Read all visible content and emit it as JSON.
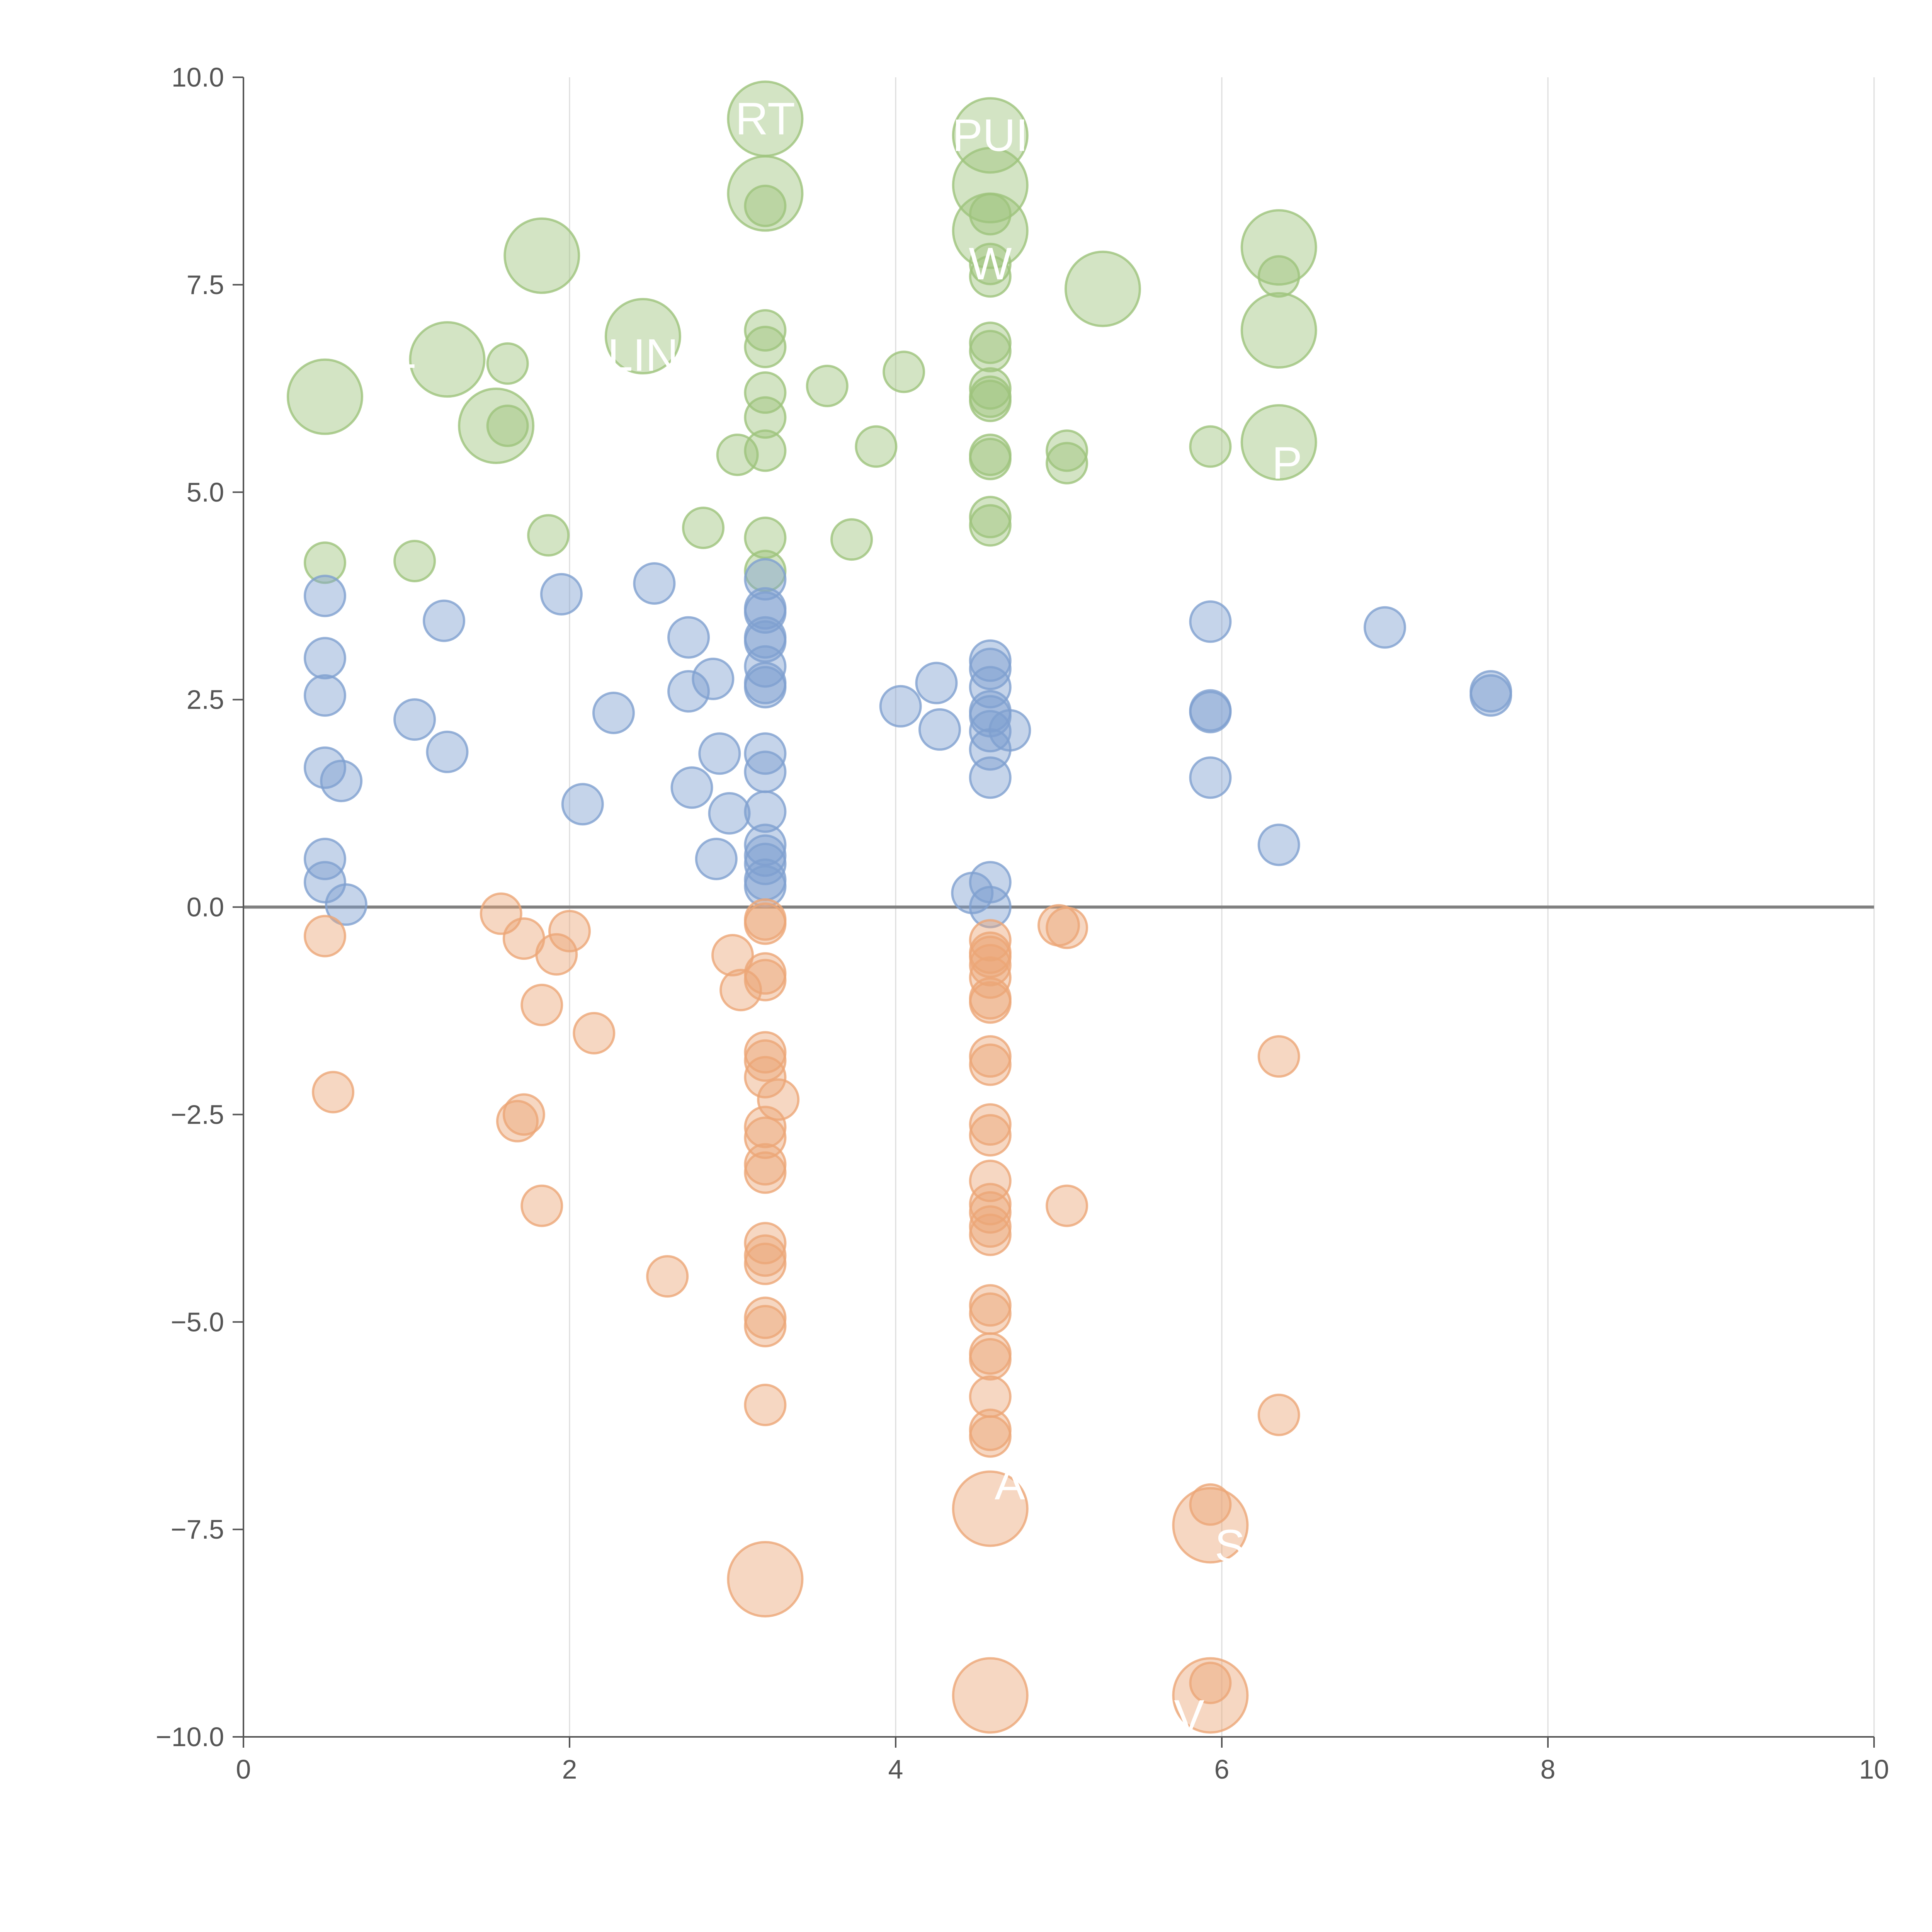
{
  "chart_data": {
    "type": "scatter",
    "title": "",
    "xlabel": "",
    "ylabel": "",
    "xlim": [
      0,
      10
    ],
    "ylim": [
      -10,
      10
    ],
    "x_ticks": [
      0,
      2,
      4,
      6,
      8,
      10
    ],
    "y_ticks": [
      -10,
      -7.5,
      -5,
      -2.5,
      0,
      2.5,
      5,
      7.5,
      10
    ],
    "x_tick_labels": [
      "0",
      "2",
      "4",
      "6",
      "8",
      "10"
    ],
    "y_tick_labels": [
      "−10.0",
      "−7.5",
      "−5.0",
      "−2.5",
      "0.0",
      "2.5",
      "5.0",
      "7.5",
      "10.0"
    ],
    "vertical_grid": true,
    "zero_line": true,
    "colors": {
      "top": "#9ec37c",
      "middle": "#7fa0d0",
      "bottom": "#eca677",
      "grid": "#dddddd",
      "axis": "#555555",
      "zero": "#808080",
      "label": "#ffffff"
    },
    "series": [
      {
        "name": "top",
        "color": "#9ec37c",
        "points": [
          [
            3.2,
            9.5,
            2
          ],
          [
            4.58,
            9.3,
            2
          ],
          [
            3.2,
            8.6,
            2
          ],
          [
            4.58,
            8.7,
            2
          ],
          [
            4.58,
            8.15,
            2
          ],
          [
            1.83,
            7.85,
            2
          ],
          [
            6.35,
            7.95,
            2
          ],
          [
            5.27,
            7.45,
            2
          ],
          [
            2.45,
            6.88,
            2
          ],
          [
            1.25,
            6.6,
            2
          ],
          [
            6.35,
            6.95,
            2
          ],
          [
            0.5,
            6.15,
            2
          ],
          [
            1.55,
            5.8,
            2
          ],
          [
            6.35,
            5.6,
            2
          ],
          [
            3.2,
            8.45,
            1
          ],
          [
            4.58,
            8.35,
            1
          ],
          [
            4.58,
            7.75,
            1
          ],
          [
            4.58,
            7.6,
            1
          ],
          [
            6.35,
            7.6,
            1
          ],
          [
            3.2,
            6.95,
            1
          ],
          [
            3.2,
            6.75,
            1
          ],
          [
            4.58,
            6.8,
            1
          ],
          [
            4.58,
            6.7,
            1
          ],
          [
            1.62,
            6.55,
            1
          ],
          [
            4.05,
            6.45,
            1
          ],
          [
            3.58,
            6.28,
            1
          ],
          [
            3.2,
            6.2,
            1
          ],
          [
            4.58,
            6.25,
            1
          ],
          [
            4.58,
            6.15,
            1
          ],
          [
            4.58,
            6.1,
            1
          ],
          [
            3.2,
            5.9,
            1
          ],
          [
            1.62,
            5.8,
            1
          ],
          [
            3.88,
            5.55,
            1
          ],
          [
            3.03,
            5.45,
            1
          ],
          [
            3.2,
            5.5,
            1
          ],
          [
            5.05,
            5.5,
            1
          ],
          [
            5.05,
            5.35,
            1
          ],
          [
            5.93,
            5.55,
            1
          ],
          [
            4.58,
            5.45,
            1
          ],
          [
            4.58,
            5.4,
            1
          ],
          [
            4.58,
            4.7,
            1
          ],
          [
            4.58,
            4.6,
            1
          ],
          [
            1.87,
            4.48,
            1
          ],
          [
            2.82,
            4.57,
            1
          ],
          [
            3.2,
            4.45,
            1
          ],
          [
            3.73,
            4.43,
            1
          ],
          [
            3.2,
            4.05,
            1
          ],
          [
            0.5,
            4.15,
            1
          ],
          [
            1.05,
            4.17,
            1
          ]
        ],
        "labels": [
          {
            "text": "RT",
            "x": 3.2,
            "y": 9.5
          },
          {
            "text": "PUI",
            "x": 4.58,
            "y": 9.3
          },
          {
            "text": "W",
            "x": 4.58,
            "y": 7.75
          },
          {
            "text": "LIN",
            "x": 2.45,
            "y": 6.65
          },
          {
            "text": "JT",
            "x": 0.9,
            "y": 6.35
          },
          {
            "text": "P",
            "x": 6.4,
            "y": 5.35
          }
        ]
      },
      {
        "name": "middle",
        "color": "#7fa0d0",
        "points": [
          [
            0.5,
            3.75
          ],
          [
            0.5,
            3.0
          ],
          [
            0.5,
            2.55
          ],
          [
            0.5,
            1.68
          ],
          [
            0.6,
            1.52
          ],
          [
            0.5,
            0.58
          ],
          [
            0.5,
            0.3
          ],
          [
            0.63,
            0.03
          ],
          [
            1.05,
            2.26
          ],
          [
            1.23,
            3.45
          ],
          [
            1.25,
            1.87
          ],
          [
            1.95,
            3.77
          ],
          [
            2.08,
            1.24
          ],
          [
            2.27,
            2.34
          ],
          [
            2.52,
            3.9
          ],
          [
            2.73,
            3.25
          ],
          [
            2.73,
            2.6
          ],
          [
            2.75,
            1.44
          ],
          [
            2.88,
            2.75
          ],
          [
            2.92,
            1.85
          ],
          [
            2.98,
            1.13
          ],
          [
            2.9,
            0.58
          ],
          [
            3.2,
            3.95
          ],
          [
            3.2,
            3.6
          ],
          [
            3.2,
            3.55
          ],
          [
            3.2,
            3.25
          ],
          [
            3.2,
            3.2
          ],
          [
            3.2,
            2.9
          ],
          [
            3.2,
            2.7
          ],
          [
            3.2,
            2.65
          ],
          [
            3.2,
            1.85
          ],
          [
            3.2,
            1.63
          ],
          [
            3.2,
            1.15
          ],
          [
            3.2,
            0.75
          ],
          [
            3.2,
            0.62
          ],
          [
            3.2,
            0.52
          ],
          [
            3.2,
            0.33
          ],
          [
            3.2,
            0.25
          ],
          [
            4.03,
            2.42
          ],
          [
            4.25,
            2.7
          ],
          [
            4.27,
            2.14
          ],
          [
            4.47,
            0.17
          ],
          [
            4.58,
            2.97
          ],
          [
            4.58,
            2.87
          ],
          [
            4.58,
            2.65
          ],
          [
            4.58,
            2.36
          ],
          [
            4.58,
            2.3
          ],
          [
            4.58,
            2.12
          ],
          [
            4.58,
            1.9
          ],
          [
            4.58,
            1.56
          ],
          [
            4.58,
            0.3
          ],
          [
            4.58,
            0.0
          ],
          [
            4.7,
            2.13
          ],
          [
            5.93,
            3.44
          ],
          [
            5.93,
            2.37
          ],
          [
            5.93,
            2.35
          ],
          [
            5.93,
            1.56
          ],
          [
            6.35,
            0.75
          ],
          [
            7.0,
            3.37
          ],
          [
            7.65,
            2.6
          ],
          [
            7.65,
            2.55
          ]
        ]
      },
      {
        "name": "bottom",
        "color": "#eca677",
        "points": [
          [
            0.5,
            -0.35,
            1
          ],
          [
            0.55,
            -2.23,
            1
          ],
          [
            1.58,
            -0.08,
            1
          ],
          [
            1.72,
            -0.38,
            1
          ],
          [
            1.92,
            -0.57,
            1
          ],
          [
            2.0,
            -0.29,
            1
          ],
          [
            1.83,
            -1.18,
            1
          ],
          [
            2.15,
            -1.52,
            1
          ],
          [
            1.72,
            -2.5,
            1
          ],
          [
            1.68,
            -2.58,
            1
          ],
          [
            1.83,
            -3.6,
            1
          ],
          [
            2.6,
            -4.45,
            1
          ],
          [
            3.0,
            -0.58,
            1
          ],
          [
            3.05,
            -1.0,
            1
          ],
          [
            3.2,
            -0.15,
            1
          ],
          [
            3.2,
            -0.2,
            1
          ],
          [
            3.2,
            -0.8,
            1
          ],
          [
            3.2,
            -0.88,
            1
          ],
          [
            3.2,
            -1.75,
            1
          ],
          [
            3.2,
            -1.85,
            1
          ],
          [
            3.2,
            -2.05,
            1
          ],
          [
            3.28,
            -2.32,
            1
          ],
          [
            3.2,
            -2.65,
            1
          ],
          [
            3.2,
            -2.78,
            1
          ],
          [
            3.2,
            -3.1,
            1
          ],
          [
            3.2,
            -3.2,
            1
          ],
          [
            3.2,
            -4.05,
            1
          ],
          [
            3.2,
            -4.2,
            1
          ],
          [
            3.2,
            -4.3,
            1
          ],
          [
            3.2,
            -4.95,
            1
          ],
          [
            3.2,
            -5.05,
            1
          ],
          [
            3.2,
            -6.0,
            1
          ],
          [
            4.58,
            -0.4,
            1
          ],
          [
            4.58,
            -0.55,
            1
          ],
          [
            4.58,
            -0.6,
            1
          ],
          [
            4.58,
            -0.7,
            1
          ],
          [
            4.58,
            -0.85,
            1
          ],
          [
            4.58,
            -1.1,
            1
          ],
          [
            4.58,
            -1.15,
            1
          ],
          [
            4.58,
            -1.8,
            1
          ],
          [
            4.58,
            -1.9,
            1
          ],
          [
            4.58,
            -2.62,
            1
          ],
          [
            4.58,
            -2.75,
            1
          ],
          [
            4.58,
            -3.3,
            1
          ],
          [
            4.58,
            -3.58,
            1
          ],
          [
            4.58,
            -3.68,
            1
          ],
          [
            4.58,
            -3.85,
            1
          ],
          [
            4.58,
            -3.95,
            1
          ],
          [
            4.58,
            -4.8,
            1
          ],
          [
            4.58,
            -4.9,
            1
          ],
          [
            4.58,
            -5.38,
            1
          ],
          [
            4.58,
            -5.45,
            1
          ],
          [
            4.58,
            -5.9,
            1
          ],
          [
            4.58,
            -6.3,
            1
          ],
          [
            4.58,
            -6.38,
            1
          ],
          [
            5.0,
            -0.22,
            1
          ],
          [
            5.05,
            -0.25,
            1
          ],
          [
            5.05,
            -3.6,
            1
          ],
          [
            5.93,
            -7.2,
            1
          ],
          [
            5.93,
            -9.35,
            1
          ],
          [
            6.35,
            -1.8,
            1
          ],
          [
            6.35,
            -6.12,
            1
          ],
          [
            4.58,
            -7.25,
            2
          ],
          [
            5.93,
            -7.45,
            2
          ],
          [
            3.2,
            -8.1,
            2
          ],
          [
            4.58,
            -9.5,
            2
          ],
          [
            5.93,
            -9.5,
            2
          ]
        ],
        "labels": [
          {
            "text": "A",
            "x": 4.7,
            "y": -6.95
          },
          {
            "text": "S",
            "x": 6.05,
            "y": -7.7
          },
          {
            "text": "V",
            "x": 5.8,
            "y": -9.75
          }
        ]
      }
    ]
  }
}
